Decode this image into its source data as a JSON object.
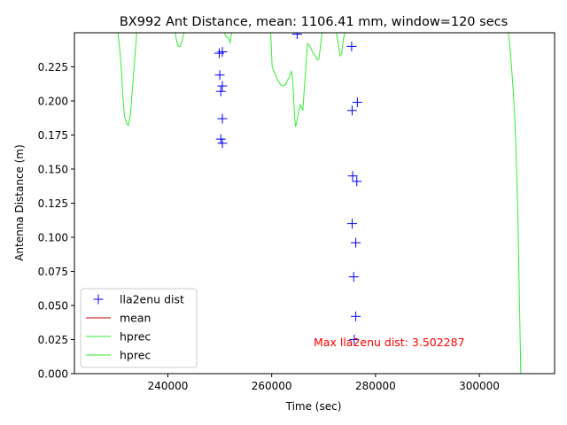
{
  "chart_data": {
    "type": "line",
    "title": "BX992 Ant Distance, mean: 1106.41 mm, window=120 secs",
    "xlabel": "Time (sec)",
    "ylabel": "Antenna Distance (m)",
    "xlim": [
      222000,
      314500
    ],
    "ylim": [
      0,
      0.25
    ],
    "x_ticks": [
      240000,
      260000,
      280000,
      300000
    ],
    "x_tick_labels": [
      "240000",
      "260000",
      "280000",
      "300000"
    ],
    "y_ticks": [
      0.0,
      0.025,
      0.05,
      0.075,
      0.1,
      0.125,
      0.15,
      0.175,
      0.2,
      0.225
    ],
    "y_tick_labels": [
      "0.000",
      "0.025",
      "0.050",
      "0.075",
      "0.100",
      "0.125",
      "0.150",
      "0.175",
      "0.200",
      "0.225"
    ],
    "grid": false,
    "legend_position": "lower-left",
    "annotation": {
      "text": "Max lla2enu dist: 3.502287",
      "color": "#ff0000"
    },
    "series": [
      {
        "name": "lla2enu dist",
        "style": "marker",
        "marker": "+",
        "color": "#0000ff",
        "points": [
          [
            249900,
            0.235
          ],
          [
            250500,
            0.236
          ],
          [
            250000,
            0.219
          ],
          [
            250500,
            0.211
          ],
          [
            250200,
            0.207
          ],
          [
            250500,
            0.187
          ],
          [
            250200,
            0.172
          ],
          [
            250500,
            0.169
          ],
          [
            264900,
            0.249
          ],
          [
            275400,
            0.24
          ],
          [
            276500,
            0.199
          ],
          [
            275500,
            0.193
          ],
          [
            275600,
            0.145
          ],
          [
            276400,
            0.141
          ],
          [
            275500,
            0.11
          ],
          [
            276200,
            0.096
          ],
          [
            275800,
            0.071
          ],
          [
            276200,
            0.042
          ],
          [
            275900,
            0.025
          ]
        ]
      },
      {
        "name": "mean",
        "style": "line",
        "color": "#cc0000",
        "points": []
      },
      {
        "name": "hprec",
        "style": "line",
        "color": "#33ee33",
        "segments": [
          [
            [
              230400,
              0.25
            ],
            [
              230800,
              0.235
            ],
            [
              231100,
              0.22
            ],
            [
              231300,
              0.205
            ],
            [
              231600,
              0.19
            ],
            [
              232000,
              0.184
            ],
            [
              232400,
              0.182
            ],
            [
              232800,
              0.19
            ],
            [
              233100,
              0.205
            ],
            [
              233400,
              0.22
            ],
            [
              233700,
              0.235
            ],
            [
              234000,
              0.25
            ]
          ],
          [
            [
              241400,
              0.25
            ],
            [
              241700,
              0.244
            ],
            [
              242000,
              0.24
            ],
            [
              242400,
              0.24
            ],
            [
              242800,
              0.245
            ],
            [
              243100,
              0.25
            ]
          ],
          [
            [
              250900,
              0.25
            ],
            [
              251200,
              0.247
            ],
            [
              251700,
              0.246
            ],
            [
              252000,
              0.243
            ],
            [
              252300,
              0.25
            ]
          ],
          [
            [
              259800,
              0.25
            ],
            [
              260100,
              0.225
            ],
            [
              260600,
              0.22
            ],
            [
              261200,
              0.215
            ],
            [
              261700,
              0.212
            ],
            [
              262200,
              0.211
            ],
            [
              262700,
              0.212
            ],
            [
              263000,
              0.215
            ],
            [
              263400,
              0.217
            ],
            [
              263800,
              0.222
            ],
            [
              264000,
              0.218
            ],
            [
              264200,
              0.205
            ],
            [
              264400,
              0.19
            ],
            [
              264600,
              0.181
            ],
            [
              264900,
              0.186
            ],
            [
              265200,
              0.192
            ],
            [
              265500,
              0.197
            ],
            [
              265800,
              0.195
            ],
            [
              266000,
              0.193
            ],
            [
              266300,
              0.21
            ],
            [
              266600,
              0.225
            ],
            [
              266900,
              0.242
            ],
            [
              267200,
              0.241
            ],
            [
              267600,
              0.238
            ],
            [
              268000,
              0.235
            ],
            [
              268400,
              0.233
            ],
            [
              268800,
              0.23
            ],
            [
              269100,
              0.231
            ],
            [
              269400,
              0.24
            ],
            [
              269700,
              0.25
            ]
          ],
          [
            [
              272500,
              0.25
            ],
            [
              272900,
              0.24
            ],
            [
              273200,
              0.233
            ],
            [
              273500,
              0.235
            ],
            [
              273800,
              0.245
            ],
            [
              274100,
              0.25
            ]
          ],
          [
            [
              305600,
              0.25
            ],
            [
              306000,
              0.235
            ],
            [
              306400,
              0.215
            ],
            [
              306800,
              0.19
            ],
            [
              307100,
              0.16
            ],
            [
              307400,
              0.12
            ],
            [
              307600,
              0.08
            ],
            [
              307800,
              0.04
            ],
            [
              308000,
              0.0
            ]
          ]
        ]
      },
      {
        "name": "hprec",
        "style": "line",
        "color": "#33ee33",
        "segments": []
      }
    ]
  }
}
